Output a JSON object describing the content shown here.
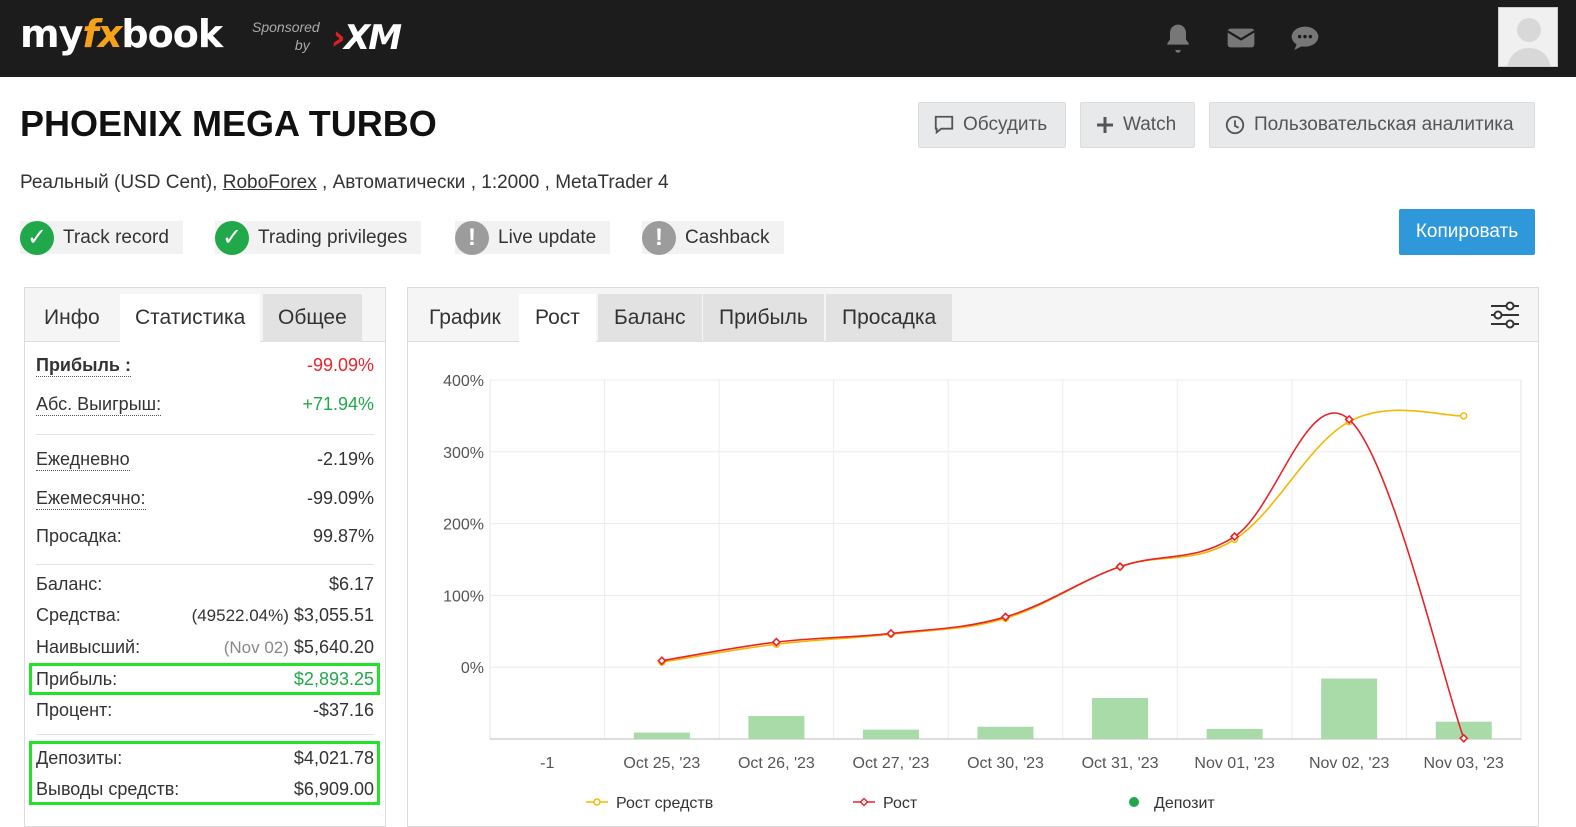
{
  "topbar": {
    "logo_my": "my",
    "logo_fx": "fx",
    "logo_book": "book",
    "sponsored_line1": "Sponsored",
    "sponsored_line2": "by",
    "sponsor_brand": "XM",
    "icons": [
      "bell-icon",
      "envelope-icon",
      "chat-icon",
      "user-avatar"
    ]
  },
  "header": {
    "title": "PHOENIX MEGA TURBO",
    "discuss_label": "Обсудить",
    "watch_label": "Watch",
    "analytics_label": "Пользовательская аналитика",
    "subtitle_prefix": "Реальный (USD Cent), ",
    "broker": "RoboForex",
    "subtitle_suffix": " , Автоматически , 1:2000 , MetaTrader 4",
    "copy_label": "Копировать",
    "badges": [
      {
        "label": "Track record",
        "status": "ok"
      },
      {
        "label": "Trading privileges",
        "status": "ok"
      },
      {
        "label": "Live update",
        "status": "warn"
      },
      {
        "label": "Cashback",
        "status": "warn"
      }
    ]
  },
  "left_tabs": [
    "Инфо",
    "Статистика",
    "Общее"
  ],
  "stats": {
    "profit_pct": {
      "label": "Прибыль :",
      "value": "-99.09%"
    },
    "abs_gain": {
      "label": "Абс. Выигрыш:",
      "value": "+71.94%"
    },
    "daily": {
      "label": "Ежедневно",
      "value": "-2.19%"
    },
    "monthly": {
      "label": "Ежемесячно:",
      "value": "-99.09%"
    },
    "drawdown": {
      "label": "Просадка:",
      "value": "99.87%"
    },
    "balance": {
      "label": "Баланс:",
      "value": "$6.17"
    },
    "equity": {
      "label": "Средства:",
      "note": "(49522.04%)",
      "value": "$3,055.51"
    },
    "highest": {
      "label": "Наивысший:",
      "note": "(Nov 02)",
      "value": "$5,640.20"
    },
    "profit": {
      "label": "Прибыль:",
      "value": "$2,893.25"
    },
    "interest": {
      "label": "Процент:",
      "value": "-$37.16"
    },
    "deposits": {
      "label": "Депозиты:",
      "value": "$4,021.78"
    },
    "withdrawals": {
      "label": "Выводы средств:",
      "value": "$6,909.00"
    }
  },
  "right_tabs": [
    "График",
    "Рост",
    "Баланс",
    "Прибыль",
    "Просадка"
  ],
  "chart_data": {
    "type": "line",
    "categories": [
      "-1",
      "Oct 25, '23",
      "Oct 26, '23",
      "Oct 27, '23",
      "Oct 30, '23",
      "Oct 31, '23",
      "Nov 01, '23",
      "Nov 02, '23",
      "Nov 03, '23"
    ],
    "y_ticks": [
      "400%",
      "300%",
      "200%",
      "100%",
      "0%"
    ],
    "ylim": [
      -100,
      400
    ],
    "grid": true,
    "legend_placement": "bottom",
    "series": [
      {
        "name": "Рост средств",
        "type": "line",
        "color": "#f5b800",
        "values": [
          null,
          7,
          32,
          46,
          68,
          140,
          178,
          342,
          350
        ]
      },
      {
        "name": "Рост",
        "type": "line",
        "color": "#e8232a",
        "values": [
          null,
          9,
          35,
          47,
          70,
          140,
          182,
          345,
          -99
        ]
      },
      {
        "name": "Депозит",
        "type": "bar",
        "color": "#a8dba8",
        "values": [
          0,
          9,
          32,
          13,
          17,
          57,
          14,
          84,
          24
        ]
      }
    ]
  }
}
